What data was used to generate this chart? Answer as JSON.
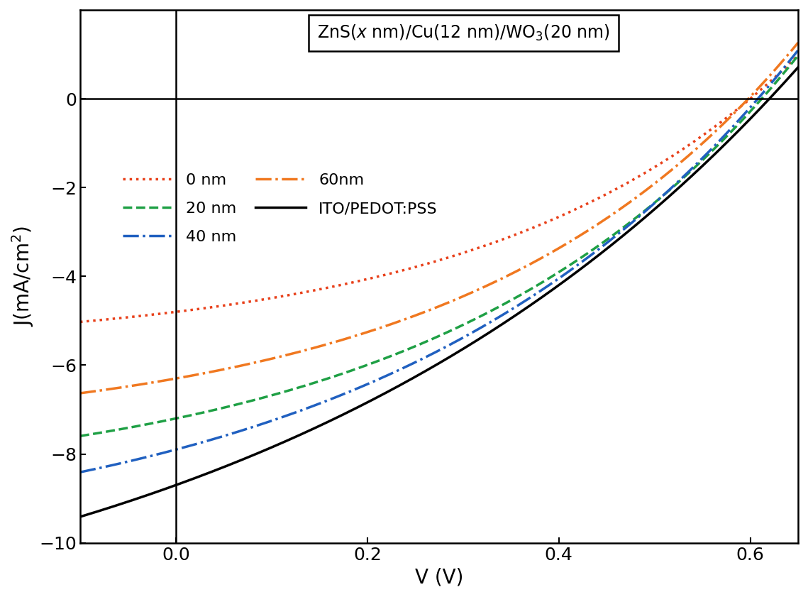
{
  "xlabel": "V (V)",
  "ylabel": "J(mA/cm$^2$)",
  "xlim": [
    -0.1,
    0.65
  ],
  "ylim": [
    -10,
    2
  ],
  "yticks": [
    -10,
    -8,
    -6,
    -4,
    -2,
    0
  ],
  "xticks": [
    0.0,
    0.2,
    0.4,
    0.6
  ],
  "series": {
    "0nm": {
      "color": "#e8401a",
      "label": "0 nm",
      "Jsc": -4.8,
      "Voc": 0.6,
      "n": 12
    },
    "20nm": {
      "color": "#1fa045",
      "label": "20 nm",
      "Jsc": -7.2,
      "Voc": 0.612,
      "n": 14
    },
    "40nm": {
      "color": "#2060c0",
      "label": "40 nm",
      "Jsc": -7.9,
      "Voc": 0.608,
      "n": 16
    },
    "60nm": {
      "color": "#f07820",
      "label": "60nm",
      "Jsc": -6.3,
      "Voc": 0.598,
      "n": 13
    },
    "ITO": {
      "color": "#000000",
      "label": "ITO/PEDOT:PSS",
      "Jsc": -8.7,
      "Voc": 0.62,
      "n": 22
    }
  },
  "background_color": "#ffffff",
  "legend_fontsize": 16,
  "axis_fontsize": 20,
  "tick_fontsize": 18
}
